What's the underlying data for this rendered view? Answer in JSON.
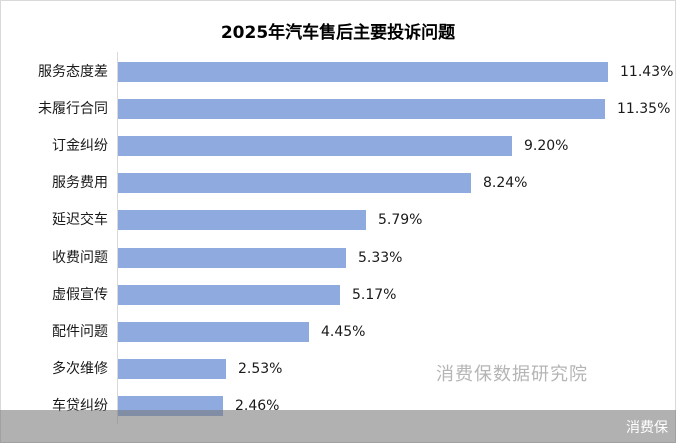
{
  "title": "2025年汽车售后主要投诉问题",
  "watermark": "消费保数据研究院",
  "footer_brand": "消费保",
  "colors": {
    "bar": "#8eaadf",
    "overlay": "#8a8a8a",
    "axis": "#d9d9d9"
  },
  "chart_data": {
    "type": "bar",
    "orientation": "horizontal",
    "title": "2025年汽车售后主要投诉问题",
    "xlabel": "",
    "ylabel": "",
    "categories": [
      "服务态度差",
      "未履行合同",
      "订金纠纷",
      "服务费用",
      "延迟交车",
      "收费问题",
      "虚假宣传",
      "配件问题",
      "多次维修",
      "车贷纠纷"
    ],
    "values": [
      11.43,
      11.35,
      9.2,
      8.24,
      5.79,
      5.33,
      5.17,
      4.45,
      2.53,
      2.46
    ],
    "value_labels": [
      "11.43%",
      "11.35%",
      "9.20%",
      "8.24%",
      "5.79%",
      "5.33%",
      "5.17%",
      "4.45%",
      "2.53%",
      "2.46%"
    ],
    "unit": "%",
    "grid": false,
    "legend": null
  },
  "rows": [
    {
      "label": "服务态度差",
      "value": 11.43,
      "text": "11.43%"
    },
    {
      "label": "未履行合同",
      "value": 11.35,
      "text": "11.35%"
    },
    {
      "label": "订金纠纷",
      "value": 9.2,
      "text": "9.20%"
    },
    {
      "label": "服务费用",
      "value": 8.24,
      "text": "8.24%"
    },
    {
      "label": "延迟交车",
      "value": 5.79,
      "text": "5.79%"
    },
    {
      "label": "收费问题",
      "value": 5.33,
      "text": "5.33%"
    },
    {
      "label": "虚假宣传",
      "value": 5.17,
      "text": "5.17%"
    },
    {
      "label": "配件问题",
      "value": 4.45,
      "text": "4.45%"
    },
    {
      "label": "多次维修",
      "value": 2.53,
      "text": "2.53%"
    },
    {
      "label": "车贷纠纷",
      "value": 2.46,
      "text": "2.46%"
    }
  ]
}
